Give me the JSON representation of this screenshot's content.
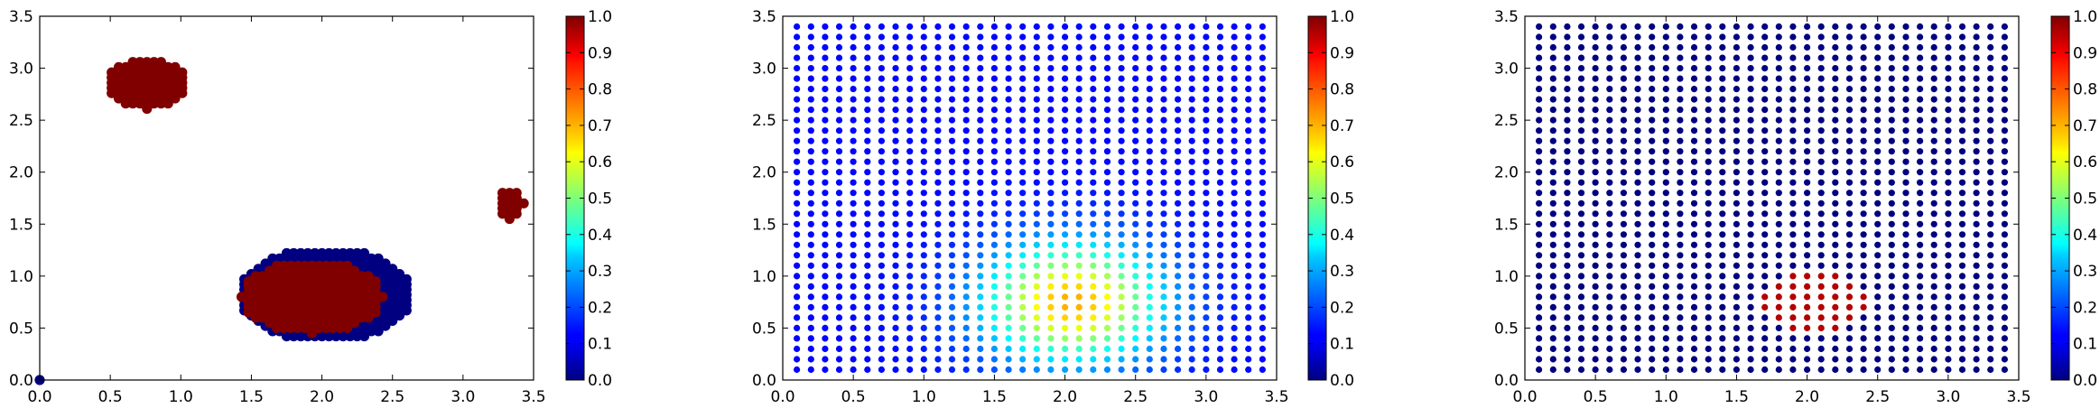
{
  "chart_data": [
    {
      "type": "scatter",
      "title": "",
      "xlabel": "",
      "ylabel": "",
      "xlim": [
        0.0,
        3.5
      ],
      "ylim": [
        0.0,
        3.5
      ],
      "grid": false,
      "x_ticks": [
        "0.0",
        "0.5",
        "1.0",
        "1.5",
        "2.0",
        "2.5",
        "3.0",
        "3.5"
      ],
      "y_ticks": [
        "0.0",
        "0.5",
        "1.0",
        "1.5",
        "2.0",
        "2.5",
        "3.0",
        "3.5"
      ],
      "colorbar": {
        "colormap": "jet",
        "range": [
          0.0,
          1.0
        ],
        "ticks": [
          "0.0",
          "0.1",
          "0.2",
          "0.3",
          "0.4",
          "0.5",
          "0.6",
          "0.7",
          "0.8",
          "0.9",
          "1.0"
        ]
      },
      "clusters": [
        {
          "label": "top-left blob",
          "value": 1.0,
          "center": [
            0.76,
            2.85
          ],
          "radius": [
            0.3,
            0.24
          ]
        },
        {
          "label": "right blob",
          "value": 1.0,
          "center": [
            3.33,
            1.7
          ],
          "radius": [
            0.1,
            0.15
          ]
        },
        {
          "label": "outer ring",
          "value": 0.0,
          "center": [
            2.02,
            0.82
          ],
          "radius": [
            0.62,
            0.45
          ]
        },
        {
          "label": "inner blob",
          "value": 1.0,
          "center": [
            1.93,
            0.8
          ],
          "radius": [
            0.5,
            0.35
          ]
        }
      ],
      "origin_point": {
        "x": 0.0,
        "y": 0.0,
        "value": 0.0
      }
    },
    {
      "type": "scatter",
      "title": "",
      "xlabel": "",
      "ylabel": "",
      "xlim": [
        0.0,
        3.5
      ],
      "ylim": [
        0.0,
        3.5
      ],
      "grid": false,
      "x_ticks": [
        "0.0",
        "0.5",
        "1.0",
        "1.5",
        "2.0",
        "2.5",
        "3.0",
        "3.5"
      ],
      "y_ticks": [
        "0.0",
        "0.5",
        "1.0",
        "1.5",
        "2.0",
        "2.5",
        "3.0",
        "3.5"
      ],
      "colorbar": {
        "colormap": "jet",
        "range": [
          0.0,
          1.0
        ],
        "ticks": [
          "0.0",
          "0.1",
          "0.2",
          "0.3",
          "0.4",
          "0.5",
          "0.6",
          "0.7",
          "0.8",
          "0.9",
          "1.0"
        ]
      },
      "grid_points": {
        "x_start": 0.1,
        "x_end": 3.4,
        "y_start": 0.1,
        "y_end": 3.4,
        "step": 0.1
      },
      "field": {
        "kind": "gaussian",
        "background": 0.13,
        "peak": 0.58,
        "center": [
          2.05,
          0.75
        ],
        "sigma": [
          0.45,
          0.4
        ]
      }
    },
    {
      "type": "scatter",
      "title": "",
      "xlabel": "",
      "ylabel": "",
      "xlim": [
        0.0,
        3.5
      ],
      "ylim": [
        0.0,
        3.5
      ],
      "grid": false,
      "x_ticks": [
        "0.0",
        "0.5",
        "1.0",
        "1.5",
        "2.0",
        "2.5",
        "3.0",
        "3.5"
      ],
      "y_ticks": [
        "0.0",
        "0.5",
        "1.0",
        "1.5",
        "2.0",
        "2.5",
        "3.0",
        "3.5"
      ],
      "colorbar": {
        "colormap": "jet",
        "range": [
          0.0,
          1.0
        ],
        "ticks": [
          "0.0",
          "0.1",
          "0.2",
          "0.3",
          "0.4",
          "0.5",
          "0.6",
          "0.7",
          "0.8",
          "0.9",
          "1.0"
        ]
      },
      "grid_points": {
        "x_start": 0.1,
        "x_end": 3.4,
        "y_start": 0.1,
        "y_end": 3.4,
        "step": 0.1
      },
      "field": {
        "kind": "region",
        "background": 0.0,
        "peak": 0.95,
        "center": [
          2.05,
          0.75
        ],
        "radius": [
          0.36,
          0.3
        ]
      }
    }
  ]
}
